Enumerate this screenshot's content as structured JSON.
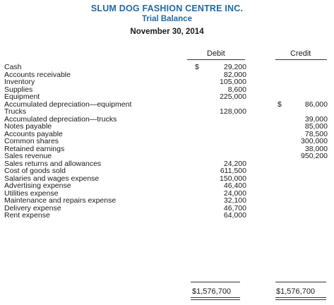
{
  "header": {
    "company": "SLUM DOG FASHION CENTRE INC.",
    "title": "Trial Balance",
    "date": "November 30, 2014"
  },
  "columns": {
    "debit": "Debit",
    "credit": "Credit"
  },
  "rows": [
    {
      "account": "Cash",
      "debit_symbol": "$",
      "debit": "29,200",
      "credit_symbol": "",
      "credit": ""
    },
    {
      "account": "Accounts receivable",
      "debit_symbol": "",
      "debit": "82,000",
      "credit_symbol": "",
      "credit": ""
    },
    {
      "account": "Inventory",
      "debit_symbol": "",
      "debit": "105,000",
      "credit_symbol": "",
      "credit": ""
    },
    {
      "account": "Supplies",
      "debit_symbol": "",
      "debit": "8,600",
      "credit_symbol": "",
      "credit": ""
    },
    {
      "account": "Equipment",
      "debit_symbol": "",
      "debit": "225,000",
      "credit_symbol": "",
      "credit": ""
    },
    {
      "account": "Accumulated depreciation—equipment",
      "debit_symbol": "",
      "debit": "",
      "credit_symbol": "$",
      "credit": "86,000"
    },
    {
      "account": "Trucks",
      "debit_symbol": "",
      "debit": "128,000",
      "credit_symbol": "",
      "credit": ""
    },
    {
      "account": "Accumulated depreciation—trucks",
      "debit_symbol": "",
      "debit": "",
      "credit_symbol": "",
      "credit": "39,000"
    },
    {
      "account": "Notes payable",
      "debit_symbol": "",
      "debit": "",
      "credit_symbol": "",
      "credit": "85,000"
    },
    {
      "account": "Accounts payable",
      "debit_symbol": "",
      "debit": "",
      "credit_symbol": "",
      "credit": "78,500"
    },
    {
      "account": "Common shares",
      "debit_symbol": "",
      "debit": "",
      "credit_symbol": "",
      "credit": "300,000"
    },
    {
      "account": "Retained earnings",
      "debit_symbol": "",
      "debit": "",
      "credit_symbol": "",
      "credit": "38,000"
    },
    {
      "account": "Sales revenue",
      "debit_symbol": "",
      "debit": "",
      "credit_symbol": "",
      "credit": "950,200"
    },
    {
      "account": "Sales returns and allowances",
      "debit_symbol": "",
      "debit": "24,200",
      "credit_symbol": "",
      "credit": ""
    },
    {
      "account": "Cost of goods sold",
      "debit_symbol": "",
      "debit": "611,500",
      "credit_symbol": "",
      "credit": ""
    },
    {
      "account": "Salaries and wages expense",
      "debit_symbol": "",
      "debit": "150,000",
      "credit_symbol": "",
      "credit": ""
    },
    {
      "account": "Advertising expense",
      "debit_symbol": "",
      "debit": "46,400",
      "credit_symbol": "",
      "credit": ""
    },
    {
      "account": "Utilities expense",
      "debit_symbol": "",
      "debit": "24,000",
      "credit_symbol": "",
      "credit": ""
    },
    {
      "account": "Maintenance and repairs expense",
      "debit_symbol": "",
      "debit": "32,100",
      "credit_symbol": "",
      "credit": ""
    },
    {
      "account": "Delivery expense",
      "debit_symbol": "",
      "debit": "46,700",
      "credit_symbol": "",
      "credit": ""
    },
    {
      "account": "Rent expense",
      "debit_symbol": "",
      "debit": "64,000",
      "credit_symbol": "",
      "credit": ""
    }
  ],
  "totals": {
    "debit": "$1,576,700",
    "credit": "$1,576,700"
  },
  "colors": {
    "heading_accent": "#1f6aa5"
  }
}
